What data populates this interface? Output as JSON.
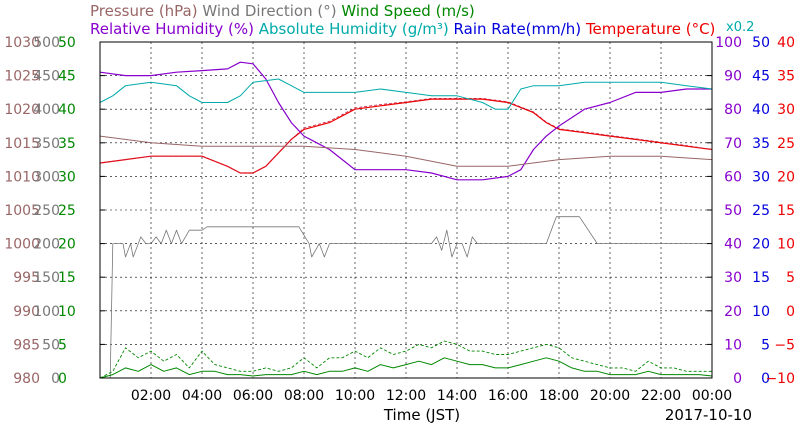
{
  "chart_data": {
    "type": "line",
    "date": "2017-10-10",
    "xlabel": "Time (JST)",
    "x_ticks": [
      "02:00",
      "04:00",
      "06:00",
      "08:00",
      "10:00",
      "12:00",
      "14:00",
      "16:00",
      "18:00",
      "20:00",
      "22:00",
      "00:00"
    ],
    "axes": [
      {
        "key": "pressure",
        "label": "Pressure (hPa)",
        "color": "#996666",
        "ticks": [
          "980",
          "985",
          "990",
          "995",
          "1000",
          "1005",
          "1010",
          "1015",
          "1020",
          "1025",
          "1030"
        ]
      },
      {
        "key": "wind_dir",
        "label": "Wind Direction (°)",
        "color": "#777777",
        "ticks": [
          "0",
          "50",
          "100",
          "150",
          "200",
          "250",
          "300",
          "350",
          "400",
          "450",
          "500"
        ]
      },
      {
        "key": "wind_speed",
        "label": "Wind Speed (m/s)",
        "color": "#008800",
        "ticks": [
          "0",
          "5",
          "10",
          "15",
          "20",
          "25",
          "30",
          "35",
          "40",
          "45",
          "50"
        ]
      },
      {
        "key": "rh",
        "label": "Relative Humidity (%)",
        "color": "#8800cc",
        "ticks": [
          "0",
          "10",
          "20",
          "30",
          "40",
          "50",
          "60",
          "70",
          "80",
          "90",
          "100"
        ]
      },
      {
        "key": "ah",
        "label": "Absolute Humidity (g/m³)",
        "scale_note": "x0.2",
        "color": "#00aaaa",
        "ticks": []
      },
      {
        "key": "rain",
        "label": "Rain Rate(mm/h)",
        "color": "#0000dd",
        "ticks": [
          "0",
          "5",
          "10",
          "15",
          "20",
          "25",
          "30",
          "35",
          "40",
          "45",
          "50"
        ]
      },
      {
        "key": "temp",
        "label": "Temperature (°C)",
        "color": "#ee0000",
        "ticks": [
          "−10",
          "−5",
          "0",
          "5",
          "10",
          "15",
          "20",
          "25",
          "30",
          "35",
          "40"
        ]
      }
    ],
    "legend_row1": [
      {
        "text": "Pressure (hPa)",
        "color": "#996666"
      },
      {
        "text": "Wind Direction (°)",
        "color": "#777777"
      },
      {
        "text": "Wind Speed (m/s)",
        "color": "#008800"
      }
    ],
    "legend_row2": [
      {
        "text": "Relative Humidity (%)",
        "color": "#8800cc"
      },
      {
        "text": "Absolute Humidity (g/m³)",
        "color": "#00aaaa"
      },
      {
        "text": "Rain Rate(mm/h)",
        "color": "#0000dd"
      },
      {
        "text": "Temperature (°C)",
        "color": "#ee0000"
      }
    ],
    "ah_scale_note": "x0.2",
    "series": [
      {
        "key": "temp",
        "unit": "°C",
        "color": "#ee0000",
        "x": [
          0,
          1,
          2,
          3,
          4,
          5,
          5.5,
          6,
          6.5,
          7,
          7.5,
          8,
          9,
          10,
          11,
          12,
          13,
          14,
          15,
          16,
          17,
          17.5,
          18,
          19,
          20,
          21,
          22,
          23,
          24
        ],
        "y": [
          22,
          22.5,
          23,
          23,
          23,
          21.5,
          20.5,
          20.5,
          21.5,
          23.5,
          25.5,
          27,
          28,
          30,
          30.5,
          31,
          31.5,
          31.5,
          31.5,
          31,
          29.5,
          28,
          27,
          26.5,
          26,
          25.5,
          25,
          24.5,
          24
        ]
      },
      {
        "key": "temp_dashed",
        "unit": "°C",
        "color": "#cc2244",
        "x": [
          0,
          1,
          2,
          3,
          4,
          5,
          5.5,
          6,
          6.5,
          7,
          7.5,
          8,
          9,
          10,
          11,
          12,
          13,
          14,
          15,
          16,
          17,
          17.5,
          18,
          19,
          20,
          21,
          22,
          23,
          24
        ],
        "y": [
          22,
          22.5,
          23,
          23,
          23,
          21.5,
          20.5,
          20.5,
          21.5,
          23.5,
          25.5,
          27.2,
          28.2,
          30.2,
          30.7,
          31.1,
          31.6,
          31.6,
          31.6,
          31.1,
          29.6,
          28.1,
          27.1,
          26.6,
          26.1,
          25.6,
          25.1,
          24.6,
          24
        ]
      },
      {
        "key": "rh",
        "unit": "%",
        "color": "#8800cc",
        "x": [
          0,
          1,
          2,
          3,
          4,
          5,
          5.5,
          6,
          6.5,
          7,
          7.5,
          8,
          8.5,
          9,
          9.5,
          10,
          11,
          12,
          13,
          14,
          15,
          16,
          16.5,
          17,
          17.5,
          18,
          19,
          20,
          21,
          22,
          23,
          24
        ],
        "y": [
          91,
          90,
          90,
          91,
          91.5,
          92,
          94,
          93.5,
          89,
          82,
          76,
          72,
          70,
          68,
          65,
          62,
          62,
          62,
          61,
          59,
          59,
          60,
          62,
          68,
          72,
          75,
          80,
          82,
          85,
          85,
          86,
          86
        ]
      },
      {
        "key": "ah",
        "unit": "scaled",
        "color": "#00aaaa",
        "x": [
          0,
          0.5,
          1,
          2,
          3,
          3.5,
          4,
          5,
          5.5,
          6,
          7,
          7.5,
          8,
          9,
          10,
          11,
          12,
          13,
          14,
          15,
          15.5,
          16,
          16.5,
          17,
          18,
          19,
          20,
          21,
          22,
          23,
          24
        ],
        "y": [
          41,
          42,
          43.5,
          44,
          43.5,
          42,
          41,
          41,
          42,
          44,
          44.5,
          43.5,
          42.5,
          42.5,
          42.5,
          43,
          42.5,
          42,
          42,
          41,
          40,
          40,
          43,
          43.5,
          43.5,
          44,
          44,
          44,
          44,
          43.5,
          43
        ]
      },
      {
        "key": "pressure",
        "unit": "hPa",
        "color": "#996666",
        "x": [
          0,
          2,
          4,
          6,
          8,
          10,
          12,
          14,
          16,
          18,
          20,
          22,
          24
        ],
        "y": [
          1016,
          1015,
          1014.5,
          1014.5,
          1014.5,
          1014,
          1013,
          1011.5,
          1011.5,
          1012.5,
          1013,
          1013,
          1012.5
        ]
      },
      {
        "key": "wind_dir",
        "unit": "°",
        "color": "#777777",
        "x": [
          0.4,
          0.5,
          0.9,
          1.0,
          1.2,
          1.3,
          1.5,
          1.6,
          1.8,
          2.0,
          2.2,
          2.4,
          2.6,
          2.8,
          3.0,
          3.2,
          3.5,
          4.0,
          4.2,
          5.0,
          6.0,
          7.0,
          7.8,
          8.2,
          8.3,
          8.6,
          8.8,
          9.0,
          9.5,
          10.0,
          11.0,
          12.0,
          12.5,
          13.0,
          13.2,
          13.4,
          13.6,
          13.8,
          14.0,
          14.2,
          14.4,
          14.6,
          14.8,
          15.0,
          15.5,
          16.0,
          17.0,
          17.5,
          17.7,
          17.9,
          18.0,
          18.5,
          18.8,
          19.5,
          20.0,
          21.0,
          22.0,
          23.0,
          24.0
        ],
        "y": [
          0,
          200,
          200,
          180,
          200,
          180,
          200,
          210,
          200,
          200,
          210,
          200,
          220,
          200,
          220,
          200,
          220,
          220,
          225,
          225,
          225,
          225,
          225,
          200,
          180,
          200,
          180,
          200,
          200,
          200,
          200,
          200,
          200,
          200,
          210,
          190,
          220,
          180,
          200,
          200,
          180,
          210,
          200,
          200,
          200,
          200,
          200,
          200,
          220,
          240,
          240,
          240,
          240,
          200,
          200,
          200,
          200,
          200,
          200
        ]
      },
      {
        "key": "wind_speed",
        "unit": "m/s",
        "color": "#008800",
        "x": [
          0,
          0.5,
          1,
          1.5,
          2,
          2.5,
          3,
          3.5,
          4,
          4.5,
          5,
          5.5,
          6,
          6.5,
          7,
          7.5,
          8,
          8.5,
          9,
          9.5,
          10,
          10.5,
          11,
          11.5,
          12,
          12.5,
          13,
          13.5,
          14,
          14.5,
          15,
          15.5,
          16,
          16.5,
          17,
          17.5,
          18,
          18.5,
          19,
          19.5,
          20,
          20.5,
          21,
          21.5,
          22,
          22.5,
          23,
          23.5,
          24
        ],
        "y": [
          0,
          0.5,
          1.5,
          1,
          2,
          1,
          1.5,
          0.5,
          1,
          1,
          0.5,
          0.5,
          0.3,
          0.5,
          0.5,
          0.5,
          1,
          0.5,
          1,
          1,
          1.5,
          1,
          2,
          1.5,
          2,
          2.5,
          2,
          3,
          2.5,
          2,
          2,
          1.5,
          1.5,
          2,
          2.5,
          3,
          2.5,
          1.5,
          1,
          1,
          0.5,
          0.5,
          0.5,
          1,
          0.5,
          0.5,
          0.5,
          0.5,
          0.3
        ]
      },
      {
        "key": "wind_gust",
        "unit": "m/s",
        "color": "#008800",
        "x": [
          0,
          0.5,
          1,
          1.5,
          2,
          2.5,
          3,
          3.5,
          4,
          4.5,
          5,
          5.5,
          6,
          6.5,
          7,
          7.5,
          8,
          8.5,
          9,
          9.5,
          10,
          10.5,
          11,
          11.5,
          12,
          12.5,
          13,
          13.5,
          14,
          14.5,
          15,
          15.5,
          16,
          16.5,
          17,
          17.5,
          18,
          18.5,
          19,
          19.5,
          20,
          20.5,
          21,
          21.5,
          22,
          22.5,
          23,
          23.5,
          24
        ],
        "y": [
          0,
          1,
          4.5,
          3,
          4,
          2.5,
          3.5,
          1.5,
          4,
          2,
          1.5,
          1,
          1,
          1.5,
          1,
          1.5,
          3,
          1.5,
          3,
          3,
          4,
          3,
          4.5,
          3.5,
          4,
          5,
          4.5,
          5.5,
          5,
          4,
          4,
          3.5,
          3.5,
          4,
          4.5,
          5,
          4.5,
          3,
          2.5,
          2,
          1.5,
          1.5,
          1,
          2.5,
          1.5,
          1.5,
          1,
          1,
          1
        ]
      }
    ]
  }
}
